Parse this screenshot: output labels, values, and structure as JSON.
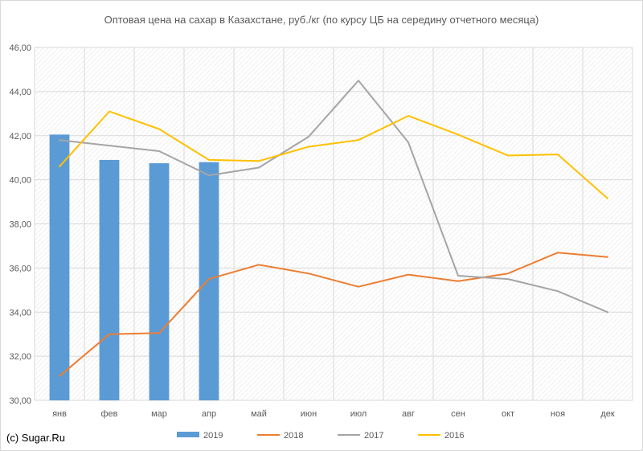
{
  "chart_data": {
    "type": "bar+line",
    "title": "Оптовая цена на сахар в Казахстане, руб./кг (по курсу ЦБ на середину отчетного месяца)",
    "categories": [
      "янв",
      "фев",
      "мар",
      "апр",
      "май",
      "июн",
      "июл",
      "авг",
      "сен",
      "окт",
      "ноя",
      "дек"
    ],
    "ylim": [
      30,
      46
    ],
    "yticks": [
      "30,00",
      "32,00",
      "34,00",
      "36,00",
      "38,00",
      "40,00",
      "42,00",
      "44,00",
      "46,00"
    ],
    "grid": "diagonal-hatched",
    "legend_position": "bottom",
    "series": [
      {
        "name": "2019",
        "kind": "bar",
        "color": "#5b9bd5",
        "values": [
          42.05,
          40.9,
          40.75,
          40.8,
          null,
          null,
          null,
          null,
          null,
          null,
          null,
          null
        ]
      },
      {
        "name": "2018",
        "kind": "line",
        "color": "#ed7d31",
        "values": [
          31.1,
          33.0,
          33.05,
          35.5,
          36.15,
          35.75,
          35.15,
          35.7,
          35.4,
          35.75,
          36.7,
          36.5
        ]
      },
      {
        "name": "2017",
        "kind": "line",
        "color": "#a5a5a5",
        "values": [
          41.8,
          41.55,
          41.3,
          40.2,
          40.55,
          41.95,
          44.5,
          41.7,
          35.65,
          35.5,
          34.95,
          34.0
        ]
      },
      {
        "name": "2016",
        "kind": "line",
        "color": "#ffc000",
        "values": [
          40.6,
          43.1,
          42.3,
          40.9,
          40.85,
          41.5,
          41.8,
          42.9,
          42.05,
          41.1,
          41.15,
          39.15
        ]
      }
    ]
  },
  "credit": "(c) Sugar.Ru"
}
